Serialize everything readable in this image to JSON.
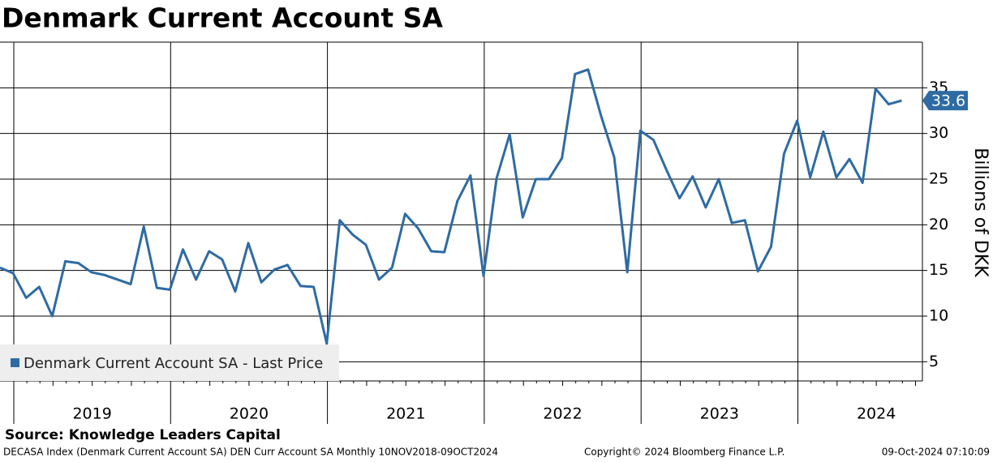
{
  "chart_data": {
    "type": "line",
    "title": "Denmark Current Account SA",
    "y_label": "Billions of DKK",
    "year_labels": [
      "2019",
      "2020",
      "2021",
      "2022",
      "2023",
      "2024"
    ],
    "series": [
      {
        "name": "Denmark Current Account SA - Last Price",
        "color": "#2e6ba4",
        "values": [
          15.3,
          14.7,
          12.0,
          13.2,
          10.0,
          16.0,
          15.8,
          14.8,
          14.5,
          14.0,
          13.5,
          19.8,
          13.1,
          12.9,
          17.3,
          14.0,
          17.1,
          16.2,
          12.7,
          18.0,
          13.7,
          15.1,
          15.6,
          13.3,
          13.2,
          7.0,
          20.5,
          18.9,
          17.8,
          14.0,
          15.3,
          21.2,
          19.6,
          17.1,
          17.0,
          22.6,
          25.4,
          14.4,
          25.1,
          29.9,
          20.8,
          25.0,
          25.0,
          27.3,
          36.5,
          37.0,
          31.9,
          27.4,
          14.8,
          30.3,
          29.3,
          26.0,
          22.9,
          25.3,
          21.9,
          25.0,
          20.2,
          20.5,
          14.9,
          17.6,
          27.8,
          31.4,
          25.2,
          30.2,
          25.2,
          27.2,
          24.6,
          34.9,
          33.2,
          33.6
        ]
      }
    ],
    "ylim": [
      2.9,
      40
    ],
    "yticks": [
      5,
      10,
      15,
      20,
      25,
      30,
      35
    ],
    "grid": true,
    "legend": "lower left",
    "source": "Source: Knowledge Leaders Capital",
    "footer_left": "DECASA Index (Denmark Current Account SA) DEN Curr Account SA  Monthly 10NOV2018-09OCT2024",
    "footer_center": "Copyright© 2024 Bloomberg Finance L.P.",
    "footer_right": "09-Oct-2024 07:10:09"
  }
}
